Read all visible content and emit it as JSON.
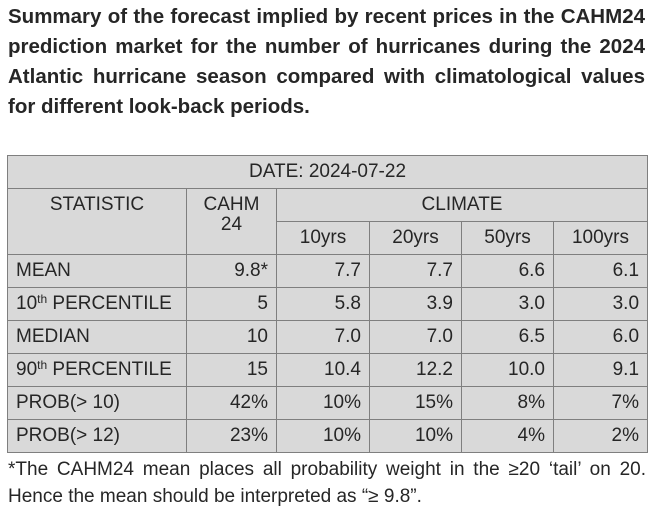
{
  "caption": "Summary of the forecast implied by recent prices in the CAHM24 prediction market for the number of hurricanes during the 2024 Atlantic hurricane season compared with climatological values for different look-back periods.",
  "table": {
    "date_header": "DATE: 2024-07-22",
    "statistic_header": "STATISTIC",
    "cahm_header_line1": "CAHM",
    "cahm_header_line2": "24",
    "climate_header": "CLIMATE",
    "periods": [
      "10yrs",
      "20yrs",
      "50yrs",
      "100yrs"
    ],
    "rows": [
      {
        "label_base": "MEAN",
        "label_sup": "",
        "label_rest": "",
        "values": [
          "9.8*",
          "7.7",
          "7.7",
          "6.6",
          "6.1"
        ]
      },
      {
        "label_base": "10",
        "label_sup": "th",
        "label_rest": " PERCENTILE",
        "values": [
          "5",
          "5.8",
          "3.9",
          "3.0",
          "3.0"
        ]
      },
      {
        "label_base": "MEDIAN",
        "label_sup": "",
        "label_rest": "",
        "values": [
          "10",
          "7.0",
          "7.0",
          "6.5",
          "6.0"
        ]
      },
      {
        "label_base": "90",
        "label_sup": "th",
        "label_rest": " PERCENTILE",
        "values": [
          "15",
          "10.4",
          "12.2",
          "10.0",
          "9.1"
        ]
      },
      {
        "label_base": "PROB(> 10)",
        "label_sup": "",
        "label_rest": "",
        "values": [
          "42%",
          "10%",
          "15%",
          "8%",
          "7%"
        ]
      },
      {
        "label_base": "PROB(> 12)",
        "label_sup": "",
        "label_rest": "",
        "values": [
          "23%",
          "10%",
          "10%",
          "4%",
          "2%"
        ]
      }
    ]
  },
  "footnote": "*The CAHM24 mean places all probability weight in the ≥20 ‘tail’ on 20. Hence the mean should be interpreted as “≥ 9.8”."
}
